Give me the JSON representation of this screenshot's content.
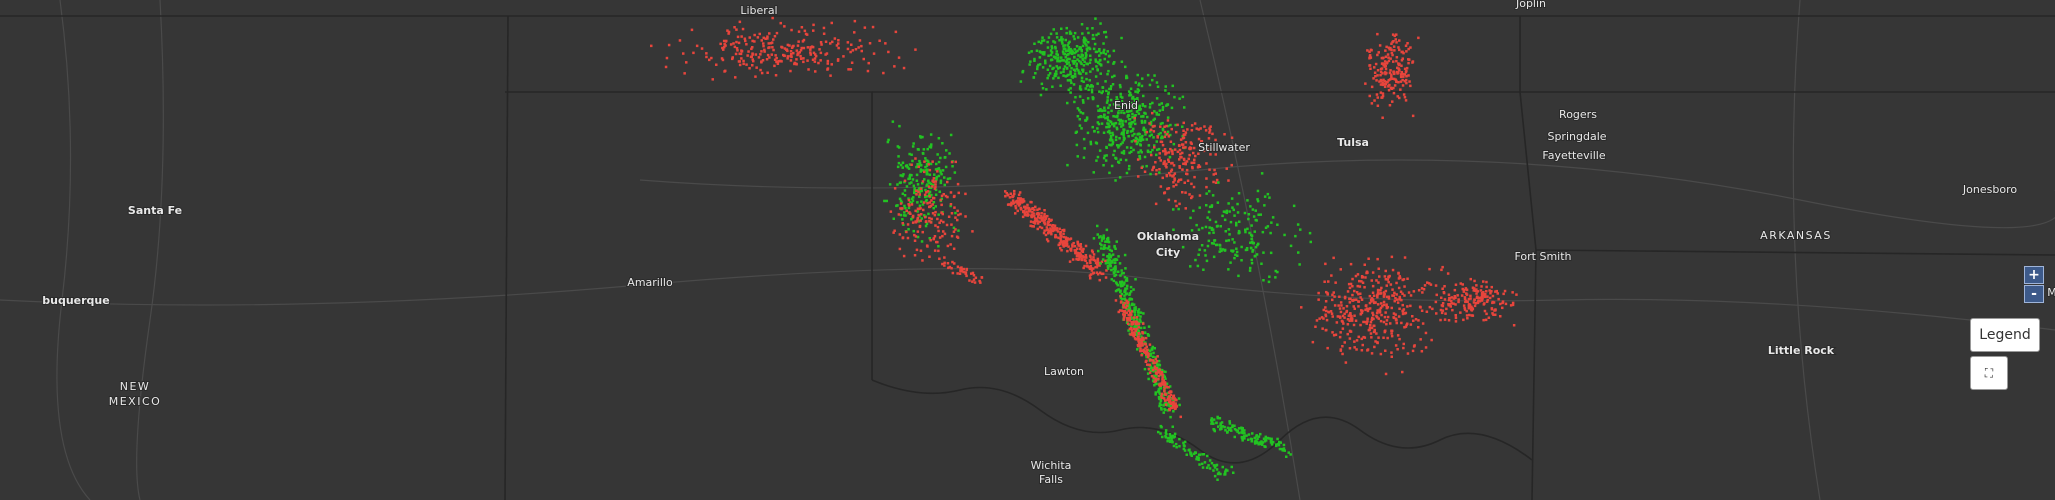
{
  "map": {
    "places": [
      {
        "lines": [
          "Liberal"
        ]
      },
      {
        "lines": [
          "Joplin"
        ]
      },
      {
        "lines": [
          "Enid"
        ]
      },
      {
        "lines": [
          "Stillwater"
        ]
      },
      {
        "lines": [
          "Tulsa"
        ]
      },
      {
        "lines": [
          "Rogers"
        ]
      },
      {
        "lines": [
          "Springdale"
        ]
      },
      {
        "lines": [
          "Fayetteville"
        ]
      },
      {
        "lines": [
          "Santa Fe"
        ]
      },
      {
        "lines": [
          "Oklahoma",
          "City"
        ]
      },
      {
        "lines": [
          "Fort Smith"
        ]
      },
      {
        "lines": [
          "Jonesboro"
        ]
      },
      {
        "lines": [
          "ARKANSAS"
        ]
      },
      {
        "lines": [
          "Amarillo"
        ]
      },
      {
        "lines": [
          "buquerque"
        ]
      },
      {
        "lines": [
          "Little Rock"
        ]
      },
      {
        "lines": [
          "NEW",
          "MEXICO"
        ]
      },
      {
        "lines": [
          "Lawton"
        ]
      },
      {
        "lines": [
          "Wichita",
          "Falls"
        ]
      },
      {
        "lines": [
          "M"
        ]
      }
    ],
    "controls": {
      "zoom_in": "+",
      "zoom_out": "-",
      "legend": "Legend"
    }
  }
}
